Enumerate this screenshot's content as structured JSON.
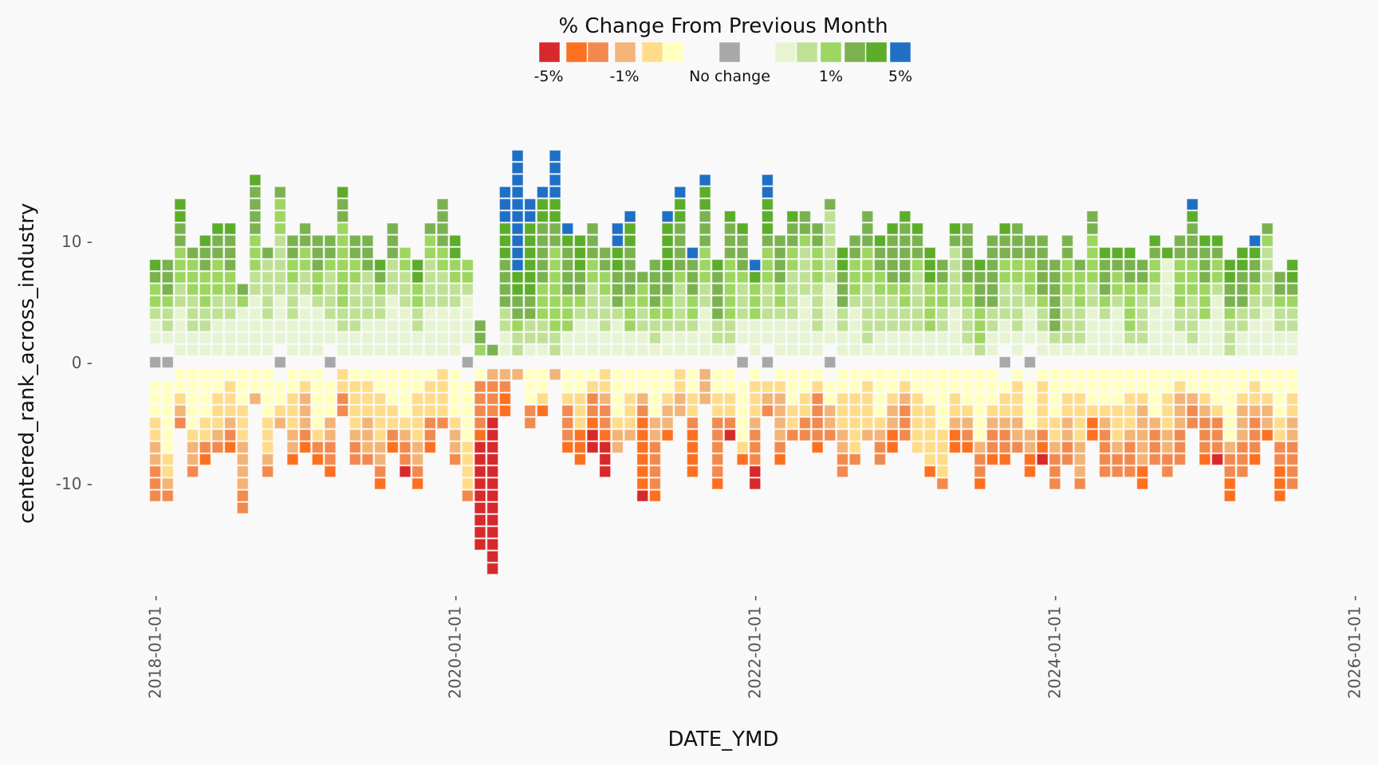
{
  "chart_data": {
    "type": "bar",
    "subtype": "stacked-waffle",
    "xlabel": "DATE_YMD",
    "ylabel": "centered_rank_across_industry",
    "ylim": [
      -18,
      18
    ],
    "yticks": [
      {
        "value": 10,
        "label": "10 -"
      },
      {
        "value": 0,
        "label": "0 -"
      },
      {
        "value": -10,
        "label": "-10 -"
      }
    ],
    "xticks": [
      {
        "month_index": 0,
        "label": "2018-01-01 -"
      },
      {
        "month_index": 24,
        "label": "2020-01-01 -"
      },
      {
        "month_index": 48,
        "label": "2022-01-01 -"
      },
      {
        "month_index": 72,
        "label": "2024-01-01 -"
      },
      {
        "month_index": 96,
        "label": "2026-01-01 -"
      }
    ],
    "start_month": "2018-01",
    "grid": false,
    "legend": {
      "title": "% Change From Previous Month",
      "placement": "top-center",
      "categories": [
        {
          "code": "a",
          "color": "#d7292c"
        },
        {
          "code": "b",
          "color": "#fd7020"
        },
        {
          "code": "c",
          "color": "#f28a4f"
        },
        {
          "code": "d",
          "color": "#f3b478"
        },
        {
          "code": "e",
          "color": "#fedc8a"
        },
        {
          "code": "f",
          "color": "#ffffc0"
        },
        {
          "code": "g",
          "color": "#a8a8a8"
        },
        {
          "code": "h",
          "color": "#e6f4d2"
        },
        {
          "code": "i",
          "color": "#bee196"
        },
        {
          "code": "j",
          "color": "#9dd660"
        },
        {
          "code": "k",
          "color": "#7ab250"
        },
        {
          "code": "l",
          "color": "#5cad29"
        },
        {
          "code": "m",
          "color": "#1f6fc5"
        }
      ],
      "labels": [
        {
          "text": "-5%",
          "under": "a"
        },
        {
          "text": "-1%",
          "under": "d"
        },
        {
          "text": "No change",
          "under": "g"
        },
        {
          "text": "1%",
          "under": "j"
        },
        {
          "text": "5%",
          "under": "m"
        }
      ]
    },
    "columns_note": "one column per month; p = cells stacked upward from rank 1, n = cells downward from rank -1, '_' = empty slot, g = grey 'no change' cell at rank 0",
    "columns": [
      {
        "g": 1,
        "p": "_hhijjkl",
        "n": "_fffeeddccc"
      },
      {
        "g": 1,
        "p": "_hiijkkk",
        "n": "_ffffffeedc"
      },
      {
        "p": "hhhhiijjjkkll",
        "n": "ffedc"
      },
      {
        "p": "hhiiijjjk",
        "n": "fffffeddc"
      },
      {
        "p": "hhiijjjkkl",
        "n": "ffffeecb"
      },
      {
        "p": "hhhiijjjkkl",
        "n": "ffeeedc"
      },
      {
        "p": "hhhiijjkkkl",
        "n": "feeedcb"
      },
      {
        "p": "hhhhjk",
        "n": "fffeeeddddcc"
      },
      {
        "p": "hhhhhiijjjkkkkl",
        "n": "ffd"
      },
      {
        "p": "hhhiiiiik",
        "n": "ffffeeedc"
      },
      {
        "g": 1,
        "p": "_hhhhiiiiijjjk",
        "n": "_ffed"
      },
      {
        "p": "hhhiiijjkk",
        "n": "ffeeeddb"
      },
      {
        "p": "hhhhhiijjkk",
        "n": "fedddcb"
      },
      {
        "p": "hhhhijjkkk",
        "n": "fffffecb"
      },
      {
        "g": 1,
        "p": "_hhiiiijkk",
        "n": "_fffddccb"
      },
      {
        "p": "hhiijjjjjjjkkl",
        "n": "eecc"
      },
      {
        "p": "hhiiiijjkk",
        "n": "feeeedcc"
      },
      {
        "p": "hhhiiiikkk",
        "n": "feeedddc"
      },
      {
        "p": "hhhiijkl",
        "n": "ffeeeeddcb"
      },
      {
        "p": "hhhhhiiikkk",
        "n": "fffeecb"
      },
      {
        "p": "hhhhiiijj",
        "n": "ffffedcca"
      },
      {
        "p": "hhiijjll",
        "n": "ffeeeeddcb"
      },
      {
        "p": "hhhhiiiijjk",
        "n": "feeeccb"
      },
      {
        "p": "hhhhiiijjkkkk",
        "n": "eeeec"
      },
      {
        "p": "hhhhiijjll",
        "n": "ffffeddc"
      },
      {
        "g": 1,
        "p": "_hhhhijj",
        "n": "_fffffeeeec"
      },
      {
        "p": "jkk",
        "n": "fccccbaaaaaaaaa"
      },
      {
        "p": "k",
        "n": "dcccaaaaaaaaaaaaa"
      },
      {
        "p": "hhiikkkklllmmm",
        "n": "dcbb"
      },
      {
        "p": "iijkkllmmmmmmmmmm",
        "n": "d"
      },
      {
        "p": "hiikkllllllmm",
        "n": "fffcc"
      },
      {
        "p": "hiijjjkkkkkllm",
        "n": "ffeb"
      },
      {
        "p": "iijjjjjjjkkllmmmm",
        "n": "d"
      },
      {
        "p": "hhjjjkkkklm",
        "n": "ffecccb"
      },
      {
        "p": "hhhijkklll",
        "n": "ffeeebbb"
      },
      {
        "p": "hhhiiijjkkk",
        "n": "feccbaa"
      },
      {
        "p": "hhiiijjkk",
        "n": "eedccbaaa"
      },
      {
        "p": "hhhikkkllmm",
        "n": "ffffedd"
      },
      {
        "p": "hhjjjkkkkllm",
        "n": "ffeeed"
      },
      {
        "p": "hhiijjk",
        "n": "ffdcbbbbbba"
      },
      {
        "p": "hiijkkkk",
        "n": "ffffddccccb"
      },
      {
        "p": "hhijjkkllllm",
        "n": "ffeddb"
      },
      {
        "p": "hhiiiijkkkkllm",
        "n": "eedd"
      },
      {
        "p": "hhijjkkkm",
        "n": "ffeecbbbb"
      },
      {
        "p": "hhhhiijjjkkkllm",
        "n": "ddd"
      },
      {
        "p": "hiikkkkl",
        "n": "ffeecccccb"
      },
      {
        "p": "hiijjjjjkkkl",
        "n": "ffeeca"
      },
      {
        "g": 1,
        "p": "_hhiiijkkkl",
        "n": "_fffffeb"
      },
      {
        "p": "hhhjjjlm",
        "n": "feeedcccaa"
      },
      {
        "g": 1,
        "p": "_hhiiijjjklllmm",
        "n": "_edc"
      },
      {
        "p": "hhhijjkkkk",
        "n": "feddddcb"
      },
      {
        "p": "hhhiiiijjkkl",
        "n": "fffeec"
      },
      {
        "p": "hhhhhiiiijkk",
        "n": "ffeecc"
      },
      {
        "p": "hhiiiijjjkk",
        "n": "feccccb"
      },
      {
        "g": 1,
        "p": "_hhhhhiiiiiik",
        "n": "_ffddc"
      },
      {
        "p": "hhiikkkll",
        "n": "ffeeeddcc"
      },
      {
        "p": "hhhhijjjkk",
        "n": "ffeeeeec"
      },
      {
        "p": "hiiiiijjjkkk",
        "n": "feeeed"
      },
      {
        "p": "hhiiijjkkl",
        "n": "ffffedcc"
      },
      {
        "p": "hhiiijkkkkl",
        "n": "ffeddbb"
      },
      {
        "p": "hhiijjkkkkkl",
        "n": "fedccc"
      },
      {
        "p": "hhiiiiijkkl",
        "n": "ffeeeee"
      },
      {
        "p": "hhjjjjlll",
        "n": "fffeeeeeb"
      },
      {
        "p": "hhiijjkk",
        "n": "fffffeeeec"
      },
      {
        "p": "hhhhiiiiikl",
        "n": "ffeedbb"
      },
      {
        "p": "hiiijjkkkkk",
        "n": "fffedcb"
      },
      {
        "p": "ijjjkkkl",
        "n": "ffffffdccb"
      },
      {
        "p": "hhiikkkkkk",
        "n": "fffedccb"
      },
      {
        "g": 1,
        "p": "_hhiiijjkkl",
        "n": "_feedccb"
      },
      {
        "p": "hhiiiijjkkk",
        "n": "feeeddc"
      },
      {
        "g": 1,
        "p": "_hhhijjjkk",
        "n": "_ffffddbb"
      },
      {
        "p": "hhiijkkkkk",
        "n": "feeeecba"
      },
      {
        "p": "hikkkkkk",
        "n": "ffffeedccc"
      },
      {
        "p": "hiiiijjjkk",
        "n": "ffeeddcc"
      },
      {
        "p": "hiiijjjk",
        "n": "ffeeeedddc"
      },
      {
        "p": "hhhhiijjjjkk",
        "n": "fffebb"
      },
      {
        "p": "hhhijkkkl",
        "n": "fffedcccc"
      },
      {
        "p": "hhhhijjkl",
        "n": "fffeeedcc"
      },
      {
        "p": "hijjjjkkl",
        "n": "ffeeedccc"
      },
      {
        "p": "hiiiijkk",
        "n": "ffedddddbb"
      },
      {
        "p": "hhhhiijjkl",
        "n": "ffffdccc"
      },
      {
        "p": "hhhhhhhhl",
        "n": "ffeeeddcc"
      },
      {
        "p": "hhiijjjjkk",
        "n": "fedddccc"
      },
      {
        "p": "hiiiijjjkkklm",
        "n": "ffdcc"
      },
      {
        "p": "hhhjjjkkkl",
        "n": "ffedcccb"
      },
      {
        "p": "hhhhhijjkl",
        "n": "fffeccca"
      },
      {
        "p": "iiijkkll",
        "n": "ffffffdccbb"
      },
      {
        "p": "hhiikkkll",
        "n": "ffedddccc"
      },
      {
        "p": "hhhiijkklm",
        "n": "feedcccb"
      },
      {
        "p": "hhhhiiiiijk",
        "n": "ffeddb"
      },
      {
        "p": "hhiijkk",
        "n": "ffffeeccbbb"
      },
      {
        "p": "hhiijkll",
        "n": "ffeeddcccc"
      }
    ]
  }
}
